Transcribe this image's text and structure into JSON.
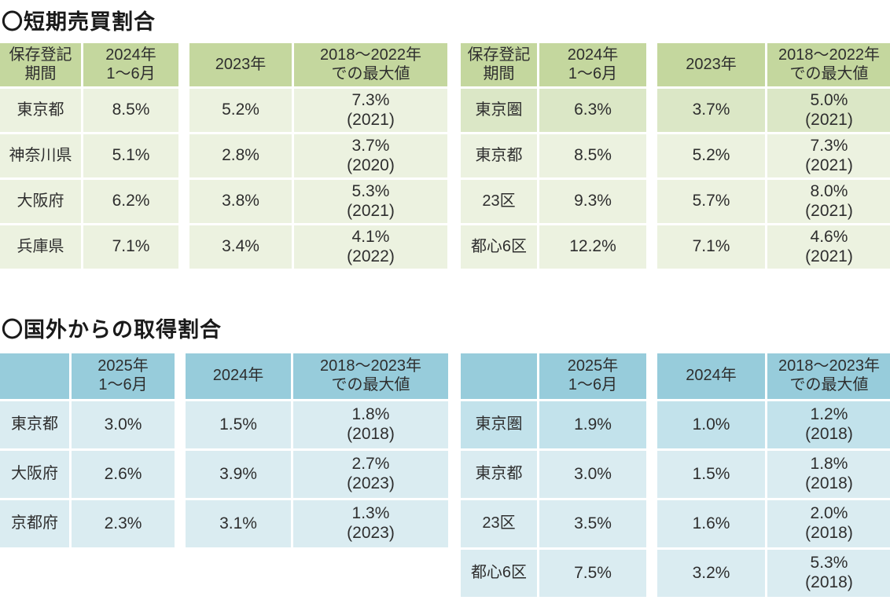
{
  "colors": {
    "green_header": "#c4d79e",
    "green_row": "#ecf2e0",
    "green_highlight": "#dbe7c6",
    "blue_header": "#97ccdb",
    "blue_row": "#daecf1",
    "blue_highlight": "#c2e2eb",
    "text": "#2e2e2e"
  },
  "short_term": {
    "title": "〇短期売買割合",
    "tables": [
      {
        "name": "prefectures",
        "headers": [
          "保存登記\n期間",
          "2024年\n1〜6月",
          "2023年",
          "2018〜2022年\nでの最大値"
        ],
        "rows": [
          {
            "label": "東京都",
            "v1": "8.5%",
            "v2": "5.2%",
            "max": "7.3%\n(2021)"
          },
          {
            "label": "神奈川県",
            "v1": "5.1%",
            "v2": "2.8%",
            "max": "3.7%\n(2020)"
          },
          {
            "label": "大阪府",
            "v1": "6.2%",
            "v2": "3.8%",
            "max": "5.3%\n(2021)"
          },
          {
            "label": "兵庫県",
            "v1": "7.1%",
            "v2": "3.4%",
            "max": "4.1%\n(2022)"
          }
        ]
      },
      {
        "name": "tokyo-area",
        "headers": [
          "保存登記\n期間",
          "2024年\n1〜6月",
          "2023年",
          "2018〜2022年\nでの最大値"
        ],
        "rows": [
          {
            "label": "東京圏",
            "v1": "6.3%",
            "v2": "3.7%",
            "max": "5.0%\n(2021)",
            "highlight": true
          },
          {
            "label": "東京都",
            "v1": "8.5%",
            "v2": "5.2%",
            "max": "7.3%\n(2021)"
          },
          {
            "label": "23区",
            "v1": "9.3%",
            "v2": "5.7%",
            "max": "8.0%\n(2021)"
          },
          {
            "label": "都心6区",
            "v1": "12.2%",
            "v2": "7.1%",
            "max": "4.6%\n(2021)"
          }
        ]
      }
    ]
  },
  "overseas": {
    "title": "〇国外からの取得割合",
    "tables": [
      {
        "name": "prefectures",
        "headers": [
          "",
          "2025年\n1〜6月",
          "2024年",
          "2018〜2023年\nでの最大値"
        ],
        "rows": [
          {
            "label": "東京都",
            "v1": "3.0%",
            "v2": "1.5%",
            "max": "1.8%\n(2018)"
          },
          {
            "label": "大阪府",
            "v1": "2.6%",
            "v2": "3.9%",
            "max": "2.7%\n(2023)"
          },
          {
            "label": "京都府",
            "v1": "2.3%",
            "v2": "3.1%",
            "max": "1.3%\n(2023)"
          }
        ]
      },
      {
        "name": "tokyo-area",
        "headers": [
          "",
          "2025年\n1〜6月",
          "2024年",
          "2018〜2023年\nでの最大値"
        ],
        "rows": [
          {
            "label": "東京圏",
            "v1": "1.9%",
            "v2": "1.0%",
            "max": "1.2%\n(2018)",
            "highlight": true
          },
          {
            "label": "東京都",
            "v1": "3.0%",
            "v2": "1.5%",
            "max": "1.8%\n(2018)"
          },
          {
            "label": "23区",
            "v1": "3.5%",
            "v2": "1.6%",
            "max": "2.0%\n(2018)"
          },
          {
            "label": "都心6区",
            "v1": "7.5%",
            "v2": "3.2%",
            "max": "5.3%\n(2018)"
          }
        ]
      }
    ]
  }
}
